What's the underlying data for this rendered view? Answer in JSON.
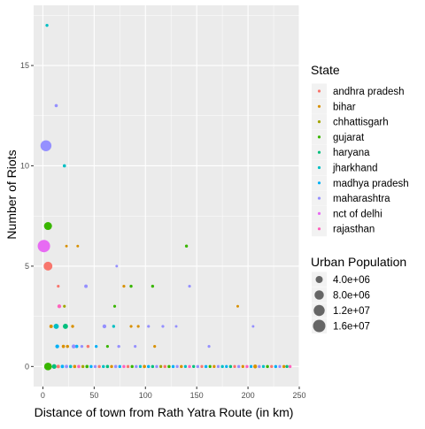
{
  "chart_data": {
    "type": "scatter",
    "title": "",
    "xlabel": "Distance of town from Rath Yatra Route (in km)",
    "ylabel": "Number of Riots",
    "xlim": [
      -9,
      250
    ],
    "ylim": [
      -1,
      18
    ],
    "x_ticks": [
      0,
      50,
      100,
      150,
      200,
      250
    ],
    "y_ticks": [
      0,
      5,
      10,
      15
    ],
    "x_tick_labels": [
      "0",
      "50",
      "100",
      "150",
      "200",
      "250"
    ],
    "y_tick_labels": [
      "0",
      "5",
      "10",
      "15"
    ],
    "grid": true,
    "legend_position": "right",
    "color_legend": {
      "title": "State",
      "entries": [
        {
          "name": "andhra pradesh",
          "color": "#F8766D"
        },
        {
          "name": "bihar",
          "color": "#D89000"
        },
        {
          "name": "chhattisgarh",
          "color": "#A3A500"
        },
        {
          "name": "gujarat",
          "color": "#39B600"
        },
        {
          "name": "haryana",
          "color": "#00BF7D"
        },
        {
          "name": "jharkhand",
          "color": "#00BFC4"
        },
        {
          "name": "madhya pradesh",
          "color": "#00B0F6"
        },
        {
          "name": "maharashtra",
          "color": "#9590FF"
        },
        {
          "name": "nct of delhi",
          "color": "#E76BF3"
        },
        {
          "name": "rajasthan",
          "color": "#FF62BC"
        }
      ]
    },
    "size_legend": {
      "title": "Urban Population",
      "entries": [
        {
          "label": "4.0e+06",
          "value": 4000000
        },
        {
          "label": "8.0e+06",
          "value": 8000000
        },
        {
          "label": "1.2e+07",
          "value": 12000000
        },
        {
          "label": "1.6e+07",
          "value": 16000000
        }
      ]
    },
    "points": [
      {
        "x": 4,
        "y": 17,
        "state": "jharkhand",
        "pop": 200000
      },
      {
        "x": 13,
        "y": 13,
        "state": "maharashtra",
        "pop": 300000
      },
      {
        "x": 3,
        "y": 11,
        "state": "maharashtra",
        "pop": 12000000
      },
      {
        "x": 21,
        "y": 10,
        "state": "jharkhand",
        "pop": 300000
      },
      {
        "x": 5,
        "y": 7,
        "state": "gujarat",
        "pop": 5500000
      },
      {
        "x": 140,
        "y": 6,
        "state": "gujarat",
        "pop": 200000
      },
      {
        "x": 1,
        "y": 6,
        "state": "nct of delhi",
        "pop": 16000000
      },
      {
        "x": 5,
        "y": 5,
        "state": "andhra pradesh",
        "pop": 7000000
      },
      {
        "x": 23,
        "y": 6,
        "state": "bihar",
        "pop": 100000
      },
      {
        "x": 34,
        "y": 6,
        "state": "bihar",
        "pop": 100000
      },
      {
        "x": 72,
        "y": 5,
        "state": "maharashtra",
        "pop": 100000
      },
      {
        "x": 15,
        "y": 4,
        "state": "andhra pradesh",
        "pop": 150000
      },
      {
        "x": 42,
        "y": 4,
        "state": "maharashtra",
        "pop": 400000
      },
      {
        "x": 79,
        "y": 4,
        "state": "bihar",
        "pop": 150000
      },
      {
        "x": 86,
        "y": 4,
        "state": "gujarat",
        "pop": 200000
      },
      {
        "x": 107,
        "y": 4,
        "state": "gujarat",
        "pop": 200000
      },
      {
        "x": 143,
        "y": 4,
        "state": "maharashtra",
        "pop": 150000
      },
      {
        "x": 16,
        "y": 3,
        "state": "rajasthan",
        "pop": 600000
      },
      {
        "x": 21,
        "y": 3,
        "state": "chhattisgarh",
        "pop": 150000
      },
      {
        "x": 70,
        "y": 3,
        "state": "gujarat",
        "pop": 150000
      },
      {
        "x": 190,
        "y": 3,
        "state": "bihar",
        "pop": 100000
      },
      {
        "x": 8,
        "y": 2,
        "state": "bihar",
        "pop": 400000
      },
      {
        "x": 13,
        "y": 2,
        "state": "jharkhand",
        "pop": 1700000
      },
      {
        "x": 22,
        "y": 2,
        "state": "haryana",
        "pop": 1600000
      },
      {
        "x": 29,
        "y": 2,
        "state": "bihar",
        "pop": 200000
      },
      {
        "x": 60,
        "y": 2,
        "state": "maharashtra",
        "pop": 600000
      },
      {
        "x": 69,
        "y": 2,
        "state": "jharkhand",
        "pop": 200000
      },
      {
        "x": 86,
        "y": 2,
        "state": "bihar",
        "pop": 150000
      },
      {
        "x": 93,
        "y": 2,
        "state": "bihar",
        "pop": 150000
      },
      {
        "x": 103,
        "y": 2,
        "state": "maharashtra",
        "pop": 150000
      },
      {
        "x": 117,
        "y": 2,
        "state": "maharashtra",
        "pop": 150000
      },
      {
        "x": 130,
        "y": 2,
        "state": "maharashtra",
        "pop": 100000
      },
      {
        "x": 205,
        "y": 2,
        "state": "maharashtra",
        "pop": 100000
      },
      {
        "x": 14,
        "y": 1,
        "state": "madhya pradesh",
        "pop": 600000
      },
      {
        "x": 20,
        "y": 1,
        "state": "bihar",
        "pop": 300000
      },
      {
        "x": 24,
        "y": 1,
        "state": "bihar",
        "pop": 250000
      },
      {
        "x": 30,
        "y": 1,
        "state": "maharashtra",
        "pop": 700000
      },
      {
        "x": 33,
        "y": 1,
        "state": "madhya pradesh",
        "pop": 300000
      },
      {
        "x": 38,
        "y": 1,
        "state": "maharashtra",
        "pop": 200000
      },
      {
        "x": 44,
        "y": 1,
        "state": "andhra pradesh",
        "pop": 250000
      },
      {
        "x": 52,
        "y": 1,
        "state": "madhya pradesh",
        "pop": 200000
      },
      {
        "x": 63,
        "y": 1,
        "state": "gujarat",
        "pop": 150000
      },
      {
        "x": 74,
        "y": 1,
        "state": "maharashtra",
        "pop": 200000
      },
      {
        "x": 90,
        "y": 1,
        "state": "maharashtra",
        "pop": 150000
      },
      {
        "x": 109,
        "y": 1,
        "state": "bihar",
        "pop": 150000
      },
      {
        "x": 162,
        "y": 1,
        "state": "maharashtra",
        "pop": 150000
      },
      {
        "x": 5,
        "y": 0,
        "state": "gujarat",
        "pop": 5000000
      },
      {
        "x": 11,
        "y": 0,
        "state": "haryana",
        "pop": 1200000
      },
      {
        "x": 15,
        "y": 0,
        "state": "andhra pradesh",
        "pop": 400000
      },
      {
        "x": 19,
        "y": 0,
        "state": "madhya pradesh",
        "pop": 350000
      },
      {
        "x": 23,
        "y": 0,
        "state": "maharashtra",
        "pop": 350000
      },
      {
        "x": 27,
        "y": 0,
        "state": "jharkhand",
        "pop": 300000
      },
      {
        "x": 31,
        "y": 0,
        "state": "bihar",
        "pop": 300000
      },
      {
        "x": 35,
        "y": 0,
        "state": "rajasthan",
        "pop": 300000
      },
      {
        "x": 39,
        "y": 0,
        "state": "chhattisgarh",
        "pop": 250000
      },
      {
        "x": 43,
        "y": 0,
        "state": "gujarat",
        "pop": 300000
      },
      {
        "x": 47,
        "y": 0,
        "state": "madhya pradesh",
        "pop": 250000
      },
      {
        "x": 51,
        "y": 0,
        "state": "maharashtra",
        "pop": 250000
      },
      {
        "x": 55,
        "y": 0,
        "state": "andhra pradesh",
        "pop": 250000
      },
      {
        "x": 59,
        "y": 0,
        "state": "jharkhand",
        "pop": 250000
      },
      {
        "x": 63,
        "y": 0,
        "state": "haryana",
        "pop": 300000
      },
      {
        "x": 67,
        "y": 0,
        "state": "bihar",
        "pop": 250000
      },
      {
        "x": 71,
        "y": 0,
        "state": "maharashtra",
        "pop": 300000
      },
      {
        "x": 75,
        "y": 0,
        "state": "madhya pradesh",
        "pop": 250000
      },
      {
        "x": 79,
        "y": 0,
        "state": "rajasthan",
        "pop": 250000
      },
      {
        "x": 83,
        "y": 0,
        "state": "andhra pradesh",
        "pop": 250000
      },
      {
        "x": 87,
        "y": 0,
        "state": "gujarat",
        "pop": 250000
      },
      {
        "x": 91,
        "y": 0,
        "state": "maharashtra",
        "pop": 250000
      },
      {
        "x": 95,
        "y": 0,
        "state": "jharkhand",
        "pop": 200000
      },
      {
        "x": 99,
        "y": 0,
        "state": "bihar",
        "pop": 300000
      },
      {
        "x": 103,
        "y": 0,
        "state": "madhya pradesh",
        "pop": 250000
      },
      {
        "x": 107,
        "y": 0,
        "state": "haryana",
        "pop": 250000
      },
      {
        "x": 111,
        "y": 0,
        "state": "maharashtra",
        "pop": 250000
      },
      {
        "x": 115,
        "y": 0,
        "state": "chhattisgarh",
        "pop": 200000
      },
      {
        "x": 119,
        "y": 0,
        "state": "andhra pradesh",
        "pop": 250000
      },
      {
        "x": 123,
        "y": 0,
        "state": "gujarat",
        "pop": 250000
      },
      {
        "x": 127,
        "y": 0,
        "state": "madhya pradesh",
        "pop": 250000
      },
      {
        "x": 131,
        "y": 0,
        "state": "maharashtra",
        "pop": 200000
      },
      {
        "x": 135,
        "y": 0,
        "state": "bihar",
        "pop": 250000
      },
      {
        "x": 139,
        "y": 0,
        "state": "jharkhand",
        "pop": 200000
      },
      {
        "x": 143,
        "y": 0,
        "state": "rajasthan",
        "pop": 250000
      },
      {
        "x": 147,
        "y": 0,
        "state": "haryana",
        "pop": 200000
      },
      {
        "x": 151,
        "y": 0,
        "state": "maharashtra",
        "pop": 250000
      },
      {
        "x": 155,
        "y": 0,
        "state": "andhra pradesh",
        "pop": 200000
      },
      {
        "x": 159,
        "y": 0,
        "state": "madhya pradesh",
        "pop": 250000
      },
      {
        "x": 163,
        "y": 0,
        "state": "gujarat",
        "pop": 200000
      },
      {
        "x": 167,
        "y": 0,
        "state": "bihar",
        "pop": 200000
      },
      {
        "x": 171,
        "y": 0,
        "state": "maharashtra",
        "pop": 200000
      },
      {
        "x": 175,
        "y": 0,
        "state": "jharkhand",
        "pop": 250000
      },
      {
        "x": 179,
        "y": 0,
        "state": "madhya pradesh",
        "pop": 200000
      },
      {
        "x": 183,
        "y": 0,
        "state": "haryana",
        "pop": 250000
      },
      {
        "x": 187,
        "y": 0,
        "state": "andhra pradesh",
        "pop": 200000
      },
      {
        "x": 191,
        "y": 0,
        "state": "maharashtra",
        "pop": 250000
      },
      {
        "x": 195,
        "y": 0,
        "state": "bihar",
        "pop": 200000
      },
      {
        "x": 199,
        "y": 0,
        "state": "rajasthan",
        "pop": 250000
      },
      {
        "x": 203,
        "y": 0,
        "state": "madhya pradesh",
        "pop": 200000
      },
      {
        "x": 207,
        "y": 0,
        "state": "bihar",
        "pop": 600000
      },
      {
        "x": 211,
        "y": 0,
        "state": "maharashtra",
        "pop": 250000
      },
      {
        "x": 215,
        "y": 0,
        "state": "jharkhand",
        "pop": 200000
      },
      {
        "x": 219,
        "y": 0,
        "state": "gujarat",
        "pop": 250000
      },
      {
        "x": 223,
        "y": 0,
        "state": "andhra pradesh",
        "pop": 200000
      },
      {
        "x": 227,
        "y": 0,
        "state": "madhya pradesh",
        "pop": 250000
      },
      {
        "x": 231,
        "y": 0,
        "state": "maharashtra",
        "pop": 200000
      },
      {
        "x": 235,
        "y": 0,
        "state": "bihar",
        "pop": 250000
      },
      {
        "x": 238,
        "y": 0,
        "state": "haryana",
        "pop": 200000
      },
      {
        "x": 241,
        "y": 0,
        "state": "rajasthan",
        "pop": 250000
      }
    ]
  }
}
